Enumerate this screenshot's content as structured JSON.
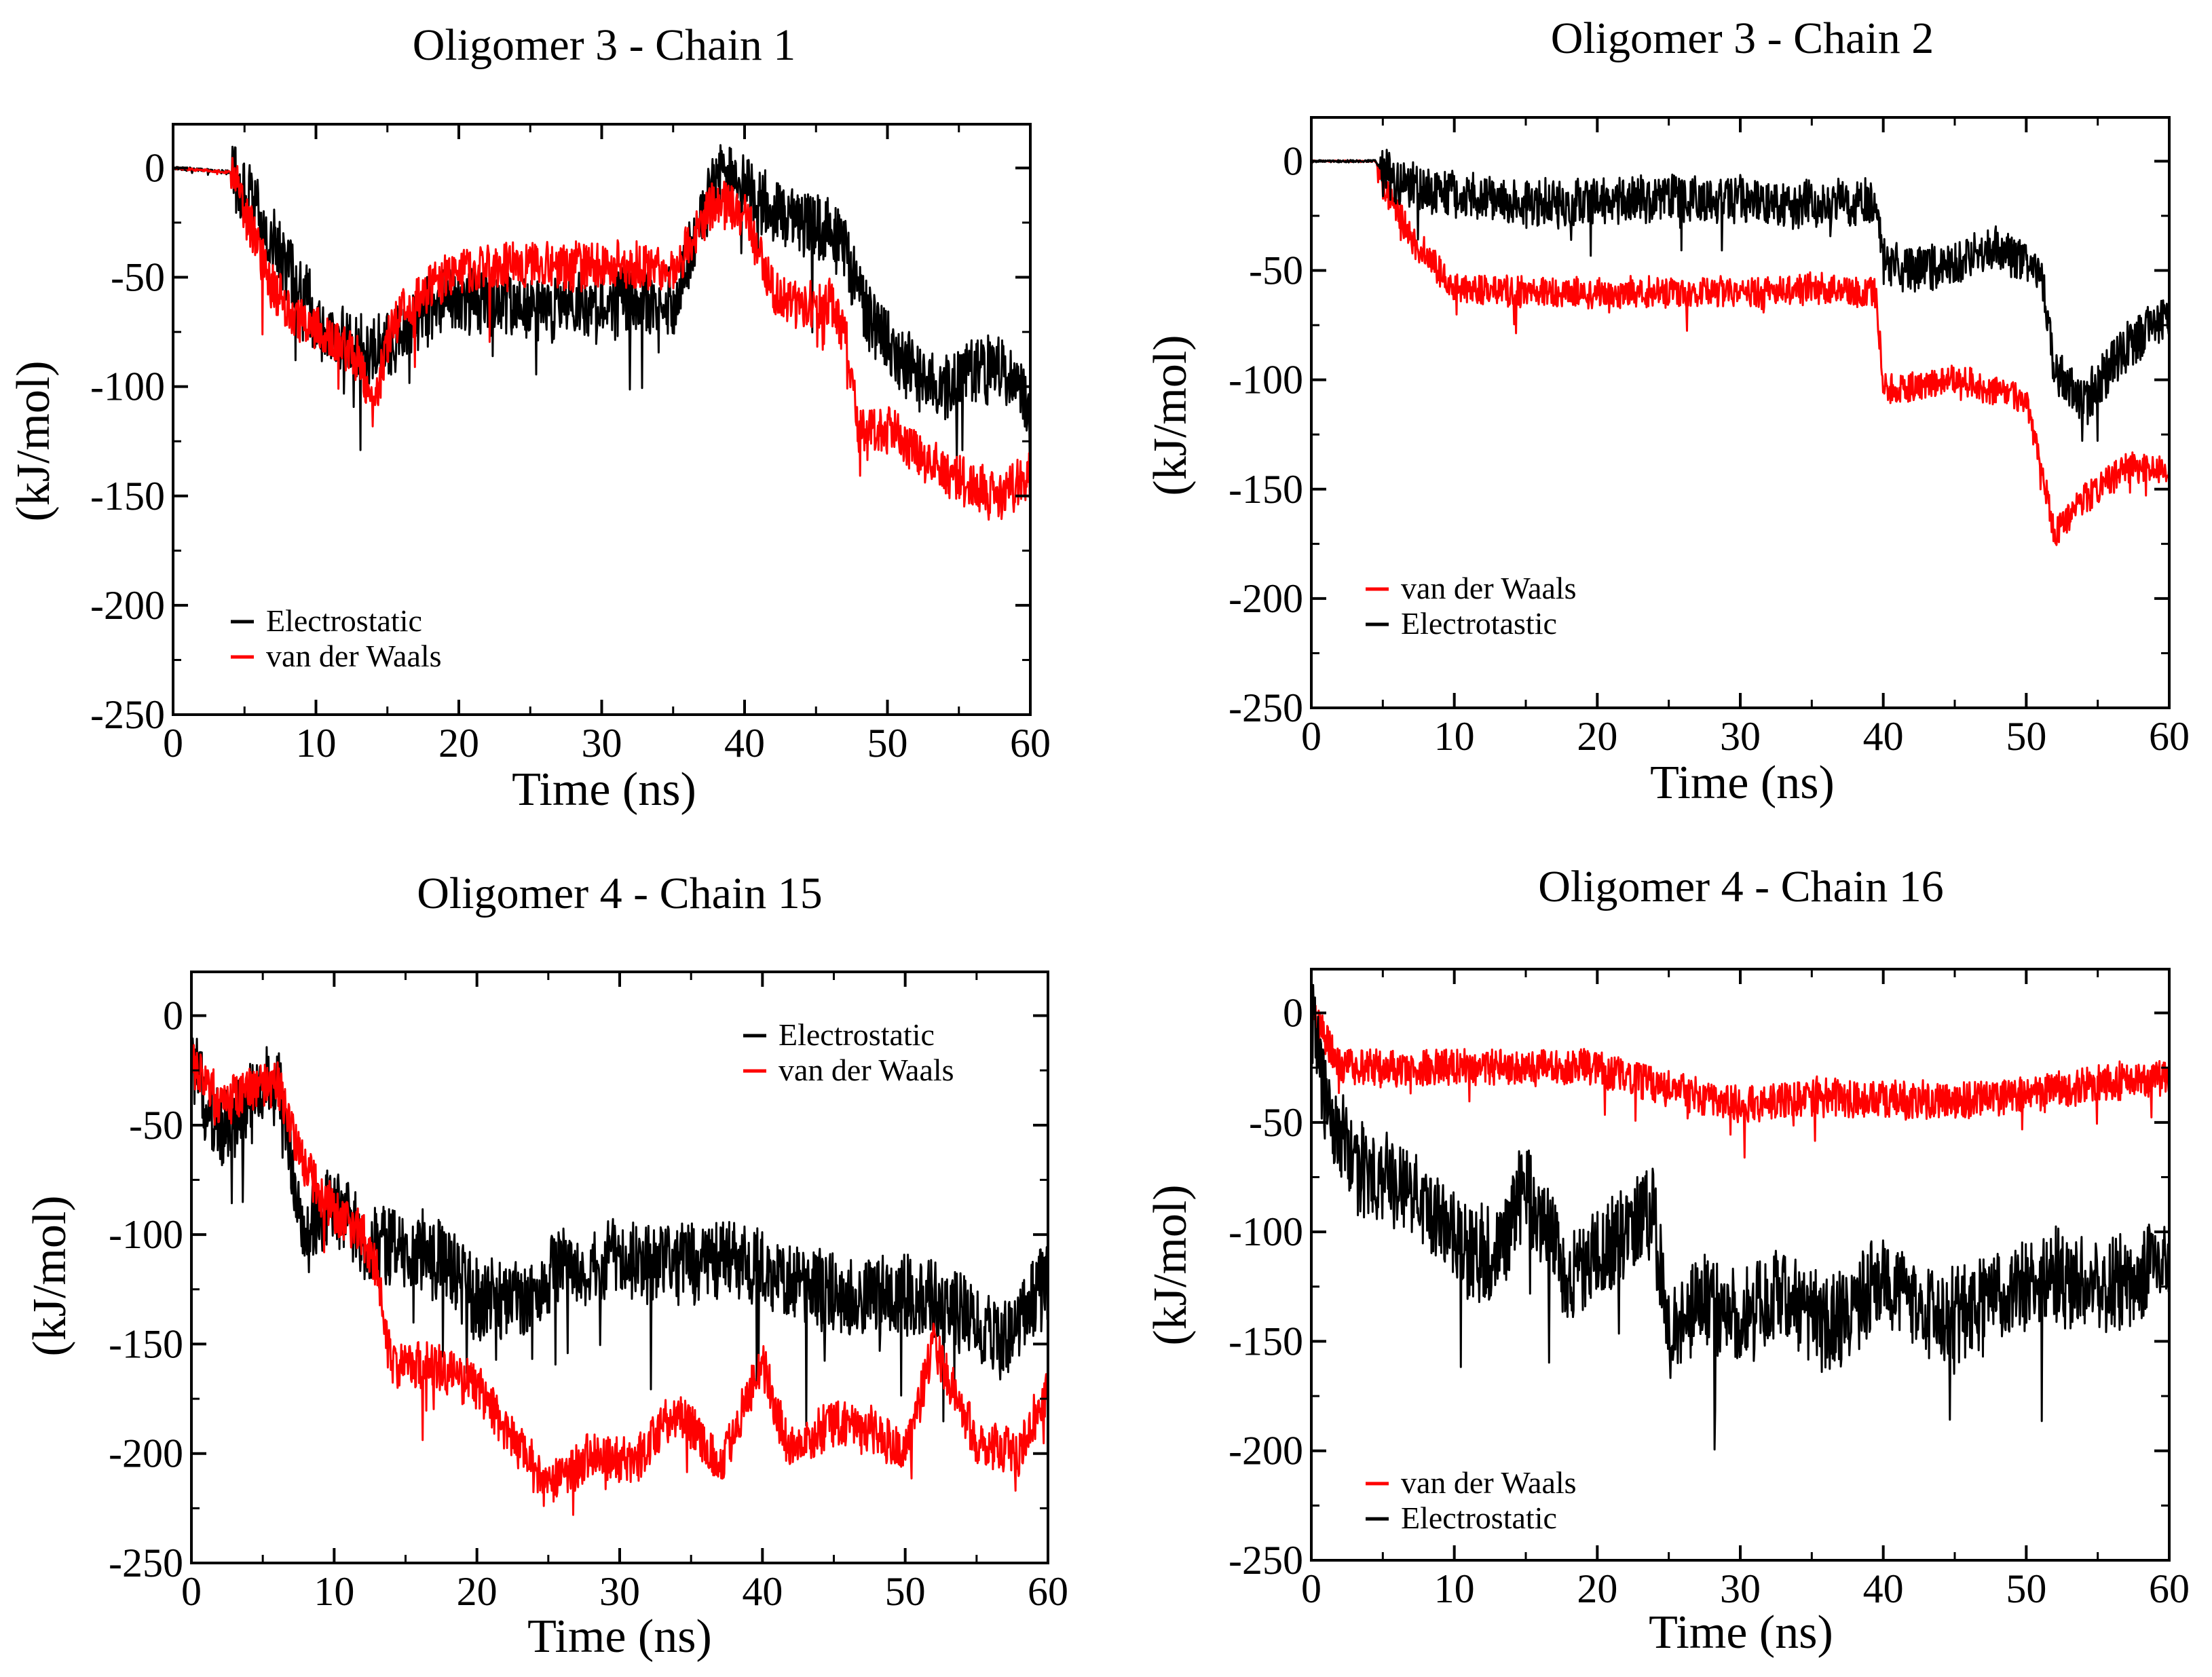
{
  "figure": {
    "description_colors": {
      "electrostatic": "#000000",
      "van_der_waals": "#ff0000"
    }
  },
  "chart_data": [
    {
      "type": "line",
      "title": "Oligomer 3 - Chain 1",
      "xlabel": "Time (ns)",
      "ylabel": "(kJ/mol)",
      "xlim": [
        0,
        60
      ],
      "ylim": [
        -250,
        20
      ],
      "xticks": [
        0,
        10,
        20,
        30,
        40,
        50,
        60
      ],
      "yticks": [
        0,
        -50,
        -100,
        -150,
        -200,
        -250
      ],
      "legend_position": "bottom-left",
      "series": [
        {
          "name": "Electrostatic",
          "color": "#000000",
          "x": [
            0,
            4,
            5,
            7,
            9,
            10,
            12,
            14,
            16,
            18,
            20,
            23,
            26,
            29,
            32,
            35,
            38,
            40,
            42,
            44,
            46,
            47,
            48,
            50,
            52,
            54,
            56,
            58,
            60
          ],
          "y": [
            0,
            -2,
            -10,
            -35,
            -55,
            -70,
            -80,
            -85,
            -75,
            -62,
            -60,
            -62,
            -65,
            -62,
            -60,
            -62,
            -5,
            -5,
            -20,
            -25,
            -30,
            -35,
            -60,
            -80,
            -95,
            -100,
            -95,
            -90,
            -110
          ],
          "noise": 20
        },
        {
          "name": "van der Waals",
          "color": "#ff0000",
          "x": [
            0,
            4,
            5,
            7,
            9,
            11,
            13,
            14,
            15,
            16,
            18,
            20,
            23,
            26,
            29,
            32,
            35,
            38,
            40,
            42,
            44,
            46,
            47,
            48,
            50,
            52,
            54,
            56,
            58,
            60
          ],
          "y": [
            0,
            -2,
            -20,
            -55,
            -70,
            -78,
            -88,
            -110,
            -80,
            -65,
            -55,
            -48,
            -45,
            -45,
            -45,
            -45,
            -47,
            -15,
            -22,
            -55,
            -65,
            -60,
            -75,
            -120,
            -120,
            -130,
            -140,
            -145,
            -150,
            -140
          ],
          "noise": 14
        }
      ]
    },
    {
      "type": "line",
      "title": "Oligomer 3 - Chain 2",
      "xlabel": "Time (ns)",
      "ylabel": "(kJ/mol)",
      "xlim": [
        0,
        60
      ],
      "ylim": [
        -250,
        20
      ],
      "xticks": [
        0,
        10,
        20,
        30,
        40,
        50,
        60
      ],
      "yticks": [
        0,
        -50,
        -100,
        -150,
        -200,
        -250
      ],
      "legend_position": "bottom-left",
      "series": [
        {
          "name": "van der Waals",
          "color": "#ff0000",
          "x": [
            0,
            4.5,
            5,
            7,
            9,
            10,
            15,
            20,
            25,
            30,
            35,
            39.5,
            40,
            45,
            50,
            51,
            52,
            54,
            57,
            60
          ],
          "y": [
            0,
            0,
            -10,
            -35,
            -50,
            -58,
            -60,
            -60,
            -60,
            -60,
            -58,
            -60,
            -105,
            -100,
            -108,
            -140,
            -170,
            -155,
            -140,
            -140
          ],
          "noise": 9
        },
        {
          "name": "Electrotastic",
          "color": "#000000",
          "x": [
            0,
            4.5,
            5,
            7,
            10,
            15,
            20,
            25,
            30,
            35,
            39.5,
            40,
            42,
            45,
            48,
            51,
            52,
            54,
            57,
            60
          ],
          "y": [
            0,
            0,
            -5,
            -12,
            -15,
            -20,
            -18,
            -17,
            -18,
            -20,
            -18,
            -45,
            -50,
            -45,
            -40,
            -50,
            -95,
            -110,
            -85,
            -70
          ],
          "noise": 14
        }
      ]
    },
    {
      "type": "line",
      "title": "Oligomer 4 - Chain 15",
      "xlabel": "Time (ns)",
      "ylabel": "(kJ/mol)",
      "xlim": [
        0,
        60
      ],
      "ylim": [
        -250,
        20
      ],
      "xticks": [
        0,
        10,
        20,
        30,
        40,
        50,
        60
      ],
      "yticks": [
        0,
        -50,
        -100,
        -150,
        -200,
        -250
      ],
      "legend_position": "top-right",
      "series": [
        {
          "name": "Electrostatic",
          "color": "#000000",
          "x": [
            0,
            2,
            4,
            6,
            8,
            10,
            12,
            14,
            17,
            20,
            23,
            26,
            30,
            34,
            38,
            42,
            46,
            50,
            54,
            57,
            60
          ],
          "y": [
            -20,
            -55,
            -40,
            -30,
            -100,
            -85,
            -105,
            -105,
            -110,
            -130,
            -130,
            -115,
            -110,
            -115,
            -110,
            -120,
            -130,
            -125,
            -135,
            -150,
            -120
          ],
          "noise": 24
        },
        {
          "name": "van der Waals",
          "color": "#ff0000",
          "x": [
            0,
            2,
            4,
            6,
            8,
            10,
            12,
            13,
            14,
            17,
            20,
            22,
            25,
            28,
            31,
            34,
            37,
            40,
            42,
            45,
            48,
            50,
            52,
            55,
            58,
            60
          ],
          "y": [
            -20,
            -40,
            -35,
            -30,
            -70,
            -90,
            -100,
            -115,
            -160,
            -160,
            -170,
            -190,
            -215,
            -200,
            -205,
            -180,
            -205,
            -160,
            -200,
            -185,
            -190,
            -200,
            -150,
            -195,
            -200,
            -170
          ],
          "noise": 14
        }
      ]
    },
    {
      "type": "line",
      "title": "Oligomer 4 - Chain 16",
      "xlabel": "Time (ns)",
      "ylabel": "(kJ/mol)",
      "xlim": [
        0,
        60
      ],
      "ylim": [
        -250,
        20
      ],
      "xticks": [
        0,
        10,
        20,
        30,
        40,
        50,
        60
      ],
      "yticks": [
        0,
        -50,
        -100,
        -150,
        -200,
        -250
      ],
      "legend_position": "bottom-left",
      "series": [
        {
          "name": "van der Waals",
          "color": "#ff0000",
          "x": [
            0,
            2,
            5,
            10,
            15,
            20,
            25,
            30,
            35,
            40,
            45,
            50,
            55,
            60
          ],
          "y": [
            0,
            -25,
            -25,
            -25,
            -25,
            -25,
            -35,
            -42,
            -38,
            -40,
            -40,
            -38,
            -32,
            -30
          ],
          "noise": 11
        },
        {
          "name": "Electrostatic",
          "color": "#000000",
          "x": [
            0,
            1,
            3,
            6,
            9,
            11,
            13,
            15,
            18,
            21,
            24,
            25,
            27,
            30,
            33,
            36,
            40,
            44,
            48,
            52,
            55,
            58,
            60
          ],
          "y": [
            0,
            -40,
            -70,
            -80,
            -95,
            -110,
            -110,
            -80,
            -120,
            -105,
            -90,
            -150,
            -130,
            -140,
            -125,
            -145,
            -120,
            -140,
            -130,
            -120,
            -125,
            -120,
            -110
          ],
          "noise": 28
        }
      ]
    }
  ]
}
